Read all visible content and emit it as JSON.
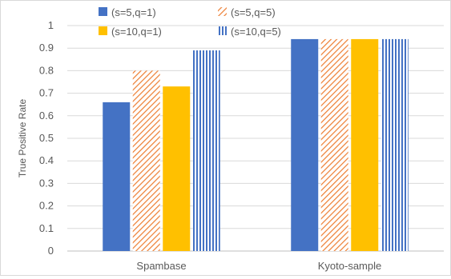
{
  "chart_data": {
    "type": "bar",
    "categories": [
      "Spambase",
      "Kyoto-sample"
    ],
    "series": [
      {
        "name": "(s=5,q=1)",
        "values": [
          0.66,
          0.94
        ],
        "color": "#4472c4",
        "fill": "solid"
      },
      {
        "name": "(s=5,q=5)",
        "values": [
          0.8,
          0.94
        ],
        "color": "#ed7d31",
        "fill": "diagonal-stripes"
      },
      {
        "name": "(s=10,q=1)",
        "values": [
          0.73,
          0.94
        ],
        "color": "#ffc000",
        "fill": "solid"
      },
      {
        "name": "(s=10,q=5)",
        "values": [
          0.89,
          0.94
        ],
        "color": "#4472c4",
        "fill": "vertical-stripes"
      }
    ],
    "title": "",
    "xlabel": "",
    "ylabel": "True Positive Rate",
    "ylim": [
      0,
      1
    ],
    "yticks": [
      "0",
      "0.1",
      "0.2",
      "0.3",
      "0.4",
      "0.5",
      "0.6",
      "0.7",
      "0.8",
      "0.9",
      "1"
    ],
    "grid": "horizontal",
    "legend_placement": "top"
  }
}
